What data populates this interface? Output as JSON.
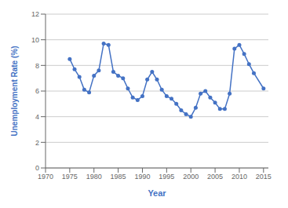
{
  "chart_data": {
    "type": "line",
    "x": [
      1975,
      1976,
      1977,
      1978,
      1979,
      1980,
      1981,
      1982,
      1983,
      1984,
      1985,
      1986,
      1987,
      1988,
      1989,
      1990,
      1991,
      1992,
      1993,
      1994,
      1995,
      1996,
      1997,
      1998,
      1999,
      2000,
      2001,
      2002,
      2003,
      2004,
      2005,
      2006,
      2007,
      2008,
      2009,
      2010,
      2011,
      2012,
      2013,
      2015
    ],
    "values": [
      8.5,
      7.7,
      7.1,
      6.1,
      5.9,
      7.2,
      7.6,
      9.7,
      9.6,
      7.5,
      7.2,
      7.0,
      6.2,
      5.5,
      5.3,
      5.6,
      6.9,
      7.5,
      6.9,
      6.1,
      5.6,
      5.4,
      5.0,
      4.5,
      4.2,
      4.0,
      4.7,
      5.8,
      6.0,
      5.5,
      5.1,
      4.6,
      4.6,
      5.8,
      9.3,
      9.6,
      8.9,
      8.1,
      7.4,
      6.2
    ],
    "color": "#4472c4",
    "marker": "circle",
    "xlabel": "Year",
    "ylabel": "Unemployment Rate (%)",
    "xlim": [
      1970,
      2016
    ],
    "ylim": [
      0,
      12
    ],
    "xticks": [
      1970,
      1975,
      1980,
      1985,
      1990,
      1995,
      2000,
      2005,
      2010,
      2015
    ],
    "yticks": [
      0,
      2,
      4,
      6,
      8,
      10,
      12
    ],
    "grid": true
  }
}
